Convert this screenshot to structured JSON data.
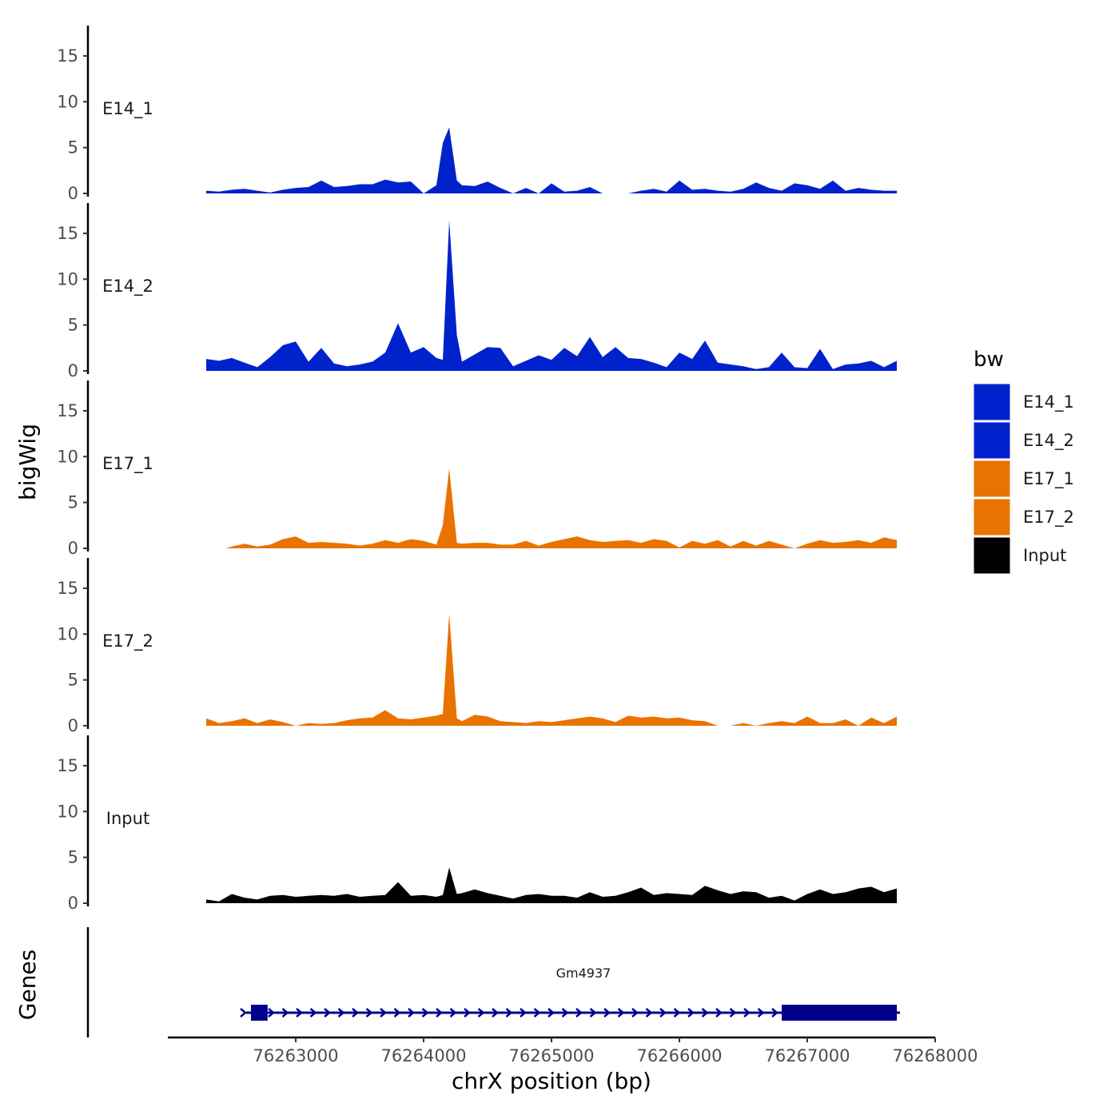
{
  "chart_data": {
    "type": "area",
    "title": "",
    "ylabel": "bigWig",
    "xlabel": "chrX position (bp)",
    "ylim": [
      0,
      17
    ],
    "yticks": [
      0,
      5,
      10,
      15
    ],
    "xlim": [
      76262000,
      76268000
    ],
    "xticks": [
      76263000,
      76264000,
      76265000,
      76266000,
      76267000,
      76268000
    ],
    "xtick_labels": [
      "76263000",
      "76264000",
      "76265000",
      "76266000",
      "76267000",
      "76268000"
    ],
    "series": [
      {
        "name": "E14_1",
        "color": "#0022CC",
        "x": [
          76262300,
          76262400,
          76262500,
          76262600,
          76262700,
          76262800,
          76262900,
          76263000,
          76263100,
          76263200,
          76263300,
          76263400,
          76263500,
          76263600,
          76263700,
          76263800,
          76263900,
          76264000,
          76264100,
          76264150,
          76264200,
          76264260,
          76264300,
          76264400,
          76264500,
          76264600,
          76264700,
          76264800,
          76264900,
          76265000,
          76265100,
          76265200,
          76265300,
          76265400,
          76265500,
          76265600,
          76265700,
          76265800,
          76265900,
          76266000,
          76266100,
          76266200,
          76266300,
          76266400,
          76266500,
          76266600,
          76266700,
          76266800,
          76266900,
          76267000,
          76267100,
          76267200,
          76267300,
          76267400,
          76267500,
          76267600,
          76267700
        ],
        "values": [
          0.3,
          0.2,
          0.4,
          0.5,
          0.3,
          0.1,
          0.4,
          0.6,
          0.7,
          1.4,
          0.7,
          0.8,
          1.0,
          1.0,
          1.5,
          1.2,
          1.3,
          0.0,
          0.9,
          5.5,
          7.2,
          1.4,
          0.9,
          0.8,
          1.3,
          0.6,
          0.0,
          0.6,
          0.0,
          1.1,
          0.2,
          0.3,
          0.7,
          0.0,
          0.0,
          0.0,
          0.3,
          0.5,
          0.2,
          1.4,
          0.4,
          0.5,
          0.3,
          0.2,
          0.5,
          1.2,
          0.6,
          0.3,
          1.1,
          0.9,
          0.5,
          1.4,
          0.3,
          0.6,
          0.4,
          0.3,
          0.3
        ]
      },
      {
        "name": "E14_2",
        "color": "#0022CC",
        "x": [
          76262300,
          76262400,
          76262500,
          76262600,
          76262700,
          76262800,
          76262900,
          76263000,
          76263100,
          76263200,
          76263300,
          76263400,
          76263500,
          76263600,
          76263700,
          76263800,
          76263900,
          76264000,
          76264100,
          76264150,
          76264200,
          76264260,
          76264300,
          76264400,
          76264500,
          76264600,
          76264700,
          76264800,
          76264900,
          76265000,
          76265100,
          76265200,
          76265300,
          76265400,
          76265500,
          76265600,
          76265700,
          76265800,
          76265900,
          76266000,
          76266100,
          76266200,
          76266300,
          76266400,
          76266500,
          76266600,
          76266700,
          76266800,
          76266900,
          76267000,
          76267100,
          76267200,
          76267300,
          76267400,
          76267500,
          76267600,
          76267700
        ],
        "values": [
          1.3,
          1.1,
          1.4,
          0.9,
          0.4,
          1.5,
          2.8,
          3.2,
          1.0,
          2.5,
          0.8,
          0.5,
          0.7,
          1.0,
          2.0,
          5.2,
          2.0,
          2.6,
          1.4,
          1.2,
          16.4,
          3.9,
          1.0,
          1.8,
          2.6,
          2.5,
          0.5,
          1.1,
          1.7,
          1.2,
          2.5,
          1.6,
          3.7,
          1.5,
          2.6,
          1.4,
          1.3,
          0.9,
          0.4,
          2.0,
          1.3,
          3.3,
          0.9,
          0.7,
          0.5,
          0.2,
          0.4,
          2.0,
          0.4,
          0.3,
          2.4,
          0.2,
          0.7,
          0.8,
          1.1,
          0.4,
          1.1
        ]
      },
      {
        "name": "E17_1",
        "color": "#E87300",
        "x": [
          76262450,
          76262500,
          76262600,
          76262700,
          76262800,
          76262900,
          76263000,
          76263100,
          76263200,
          76263300,
          76263400,
          76263500,
          76263600,
          76263700,
          76263800,
          76263900,
          76264000,
          76264100,
          76264150,
          76264200,
          76264260,
          76264300,
          76264400,
          76264500,
          76264600,
          76264700,
          76264800,
          76264900,
          76265000,
          76265100,
          76265200,
          76265300,
          76265400,
          76265500,
          76265600,
          76265700,
          76265800,
          76265900,
          76266000,
          76266100,
          76266200,
          76266300,
          76266400,
          76266500,
          76266600,
          76266700,
          76266800,
          76266900,
          76267000,
          76267100,
          76267200,
          76267300,
          76267400,
          76267500,
          76267600,
          76267700
        ],
        "values": [
          0.0,
          0.2,
          0.5,
          0.2,
          0.4,
          1.0,
          1.3,
          0.6,
          0.7,
          0.6,
          0.5,
          0.3,
          0.5,
          0.9,
          0.6,
          1.0,
          0.8,
          0.4,
          2.5,
          8.7,
          0.6,
          0.5,
          0.6,
          0.6,
          0.4,
          0.4,
          0.8,
          0.3,
          0.7,
          1.0,
          1.3,
          0.9,
          0.7,
          0.8,
          0.9,
          0.6,
          1.0,
          0.8,
          0.1,
          0.8,
          0.5,
          0.9,
          0.2,
          0.8,
          0.3,
          0.8,
          0.4,
          0.0,
          0.5,
          0.9,
          0.6,
          0.7,
          0.9,
          0.6,
          1.2,
          0.9
        ]
      },
      {
        "name": "E17_2",
        "color": "#E87300",
        "x": [
          76262300,
          76262400,
          76262500,
          76262600,
          76262700,
          76262800,
          76262900,
          76263000,
          76263100,
          76263200,
          76263300,
          76263400,
          76263500,
          76263600,
          76263700,
          76263800,
          76263900,
          76264000,
          76264100,
          76264150,
          76264200,
          76264260,
          76264300,
          76264400,
          76264500,
          76264600,
          76264700,
          76264800,
          76264900,
          76265000,
          76265100,
          76265200,
          76265300,
          76265400,
          76265500,
          76265600,
          76265700,
          76265800,
          76265900,
          76266000,
          76266100,
          76266200,
          76266300,
          76266400,
          76266500,
          76266600,
          76266700,
          76266800,
          76266900,
          76267000,
          76267100,
          76267200,
          76267300,
          76267400,
          76267500,
          76267600,
          76267700
        ],
        "values": [
          0.8,
          0.3,
          0.5,
          0.8,
          0.3,
          0.7,
          0.4,
          0.0,
          0.3,
          0.2,
          0.3,
          0.6,
          0.8,
          0.9,
          1.7,
          0.8,
          0.7,
          0.9,
          1.1,
          1.3,
          12.2,
          0.8,
          0.5,
          1.2,
          1.0,
          0.5,
          0.4,
          0.3,
          0.5,
          0.4,
          0.6,
          0.8,
          1.0,
          0.8,
          0.4,
          1.1,
          0.9,
          1.0,
          0.8,
          0.9,
          0.6,
          0.5,
          0.0,
          0.0,
          0.3,
          0.0,
          0.3,
          0.5,
          0.3,
          1.0,
          0.3,
          0.3,
          0.7,
          0.0,
          0.9,
          0.3,
          1.0
        ]
      },
      {
        "name": "Input",
        "color": "#000000",
        "x": [
          76262300,
          76262400,
          76262500,
          76262600,
          76262700,
          76262800,
          76262900,
          76263000,
          76263100,
          76263200,
          76263300,
          76263400,
          76263500,
          76263600,
          76263700,
          76263800,
          76263900,
          76264000,
          76264100,
          76264150,
          76264200,
          76264260,
          76264300,
          76264400,
          76264500,
          76264600,
          76264700,
          76264800,
          76264900,
          76265000,
          76265100,
          76265200,
          76265300,
          76265400,
          76265500,
          76265600,
          76265700,
          76265800,
          76265900,
          76266000,
          76266100,
          76266200,
          76266300,
          76266400,
          76266500,
          76266600,
          76266700,
          76266800,
          76266900,
          76267000,
          76267100,
          76267200,
          76267300,
          76267400,
          76267500,
          76267600,
          76267700
        ],
        "values": [
          0.4,
          0.2,
          1.0,
          0.6,
          0.4,
          0.8,
          0.9,
          0.7,
          0.8,
          0.9,
          0.8,
          1.0,
          0.7,
          0.8,
          0.9,
          2.3,
          0.8,
          0.9,
          0.7,
          0.9,
          3.9,
          1.0,
          1.1,
          1.5,
          1.1,
          0.8,
          0.5,
          0.9,
          1.0,
          0.8,
          0.8,
          0.6,
          1.2,
          0.7,
          0.8,
          1.2,
          1.7,
          0.9,
          1.1,
          1.0,
          0.9,
          1.9,
          1.4,
          1.0,
          1.3,
          1.2,
          0.6,
          0.8,
          0.3,
          1.0,
          1.5,
          1.0,
          1.2,
          1.6,
          1.8,
          1.2,
          1.6
        ]
      }
    ],
    "genes": {
      "title": "Genes",
      "items": [
        {
          "name": "Gm4937",
          "strand": "+",
          "start": 76262650,
          "end": 76267700,
          "exons": [
            [
              76262650,
              76262780
            ],
            [
              76266800,
              76267700
            ]
          ],
          "color": "#00008B"
        }
      ]
    },
    "legend": {
      "title": "bw",
      "position": "right",
      "entries": [
        {
          "label": "E14_1",
          "color": "#0022CC"
        },
        {
          "label": "E14_2",
          "color": "#0022CC"
        },
        {
          "label": "E17_1",
          "color": "#E87300"
        },
        {
          "label": "E17_2",
          "color": "#E87300"
        },
        {
          "label": "Input",
          "color": "#000000"
        }
      ]
    }
  }
}
